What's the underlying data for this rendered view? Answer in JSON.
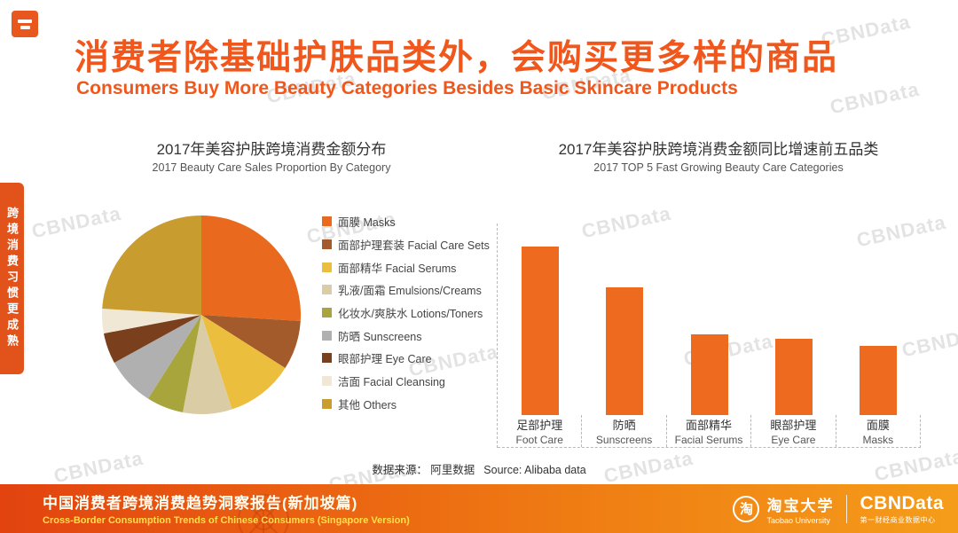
{
  "watermark": {
    "text": "CBNData"
  },
  "side_tab": {
    "text": "跨境消费习惯更成熟"
  },
  "header": {
    "title_zh": "消费者除基础护肤品类外，会购买更多样的商品",
    "title_en": "Consumers Buy More Beauty Categories Besides Basic Skincare Products"
  },
  "source": {
    "zh": "数据来源： 阿里数据",
    "en": "Source:  Alibaba data"
  },
  "footer": {
    "report_zh": "中国消费者跨境消费趋势洞察报告(新加坡篇)",
    "report_en": "Cross-Border Consumption Trends of Chinese Consumers  (Singapore Version)",
    "taobao_mark": "淘",
    "taobao_zh": "淘宝大学",
    "taobao_en": "Taobao University",
    "cbn_logo": "CBNData",
    "cbn_sub": "第一财经商业数据中心"
  },
  "chart_data": [
    {
      "type": "pie",
      "title": "2017年美容护肤跨境消费金额分布",
      "subtitle": "2017  Beauty Care Sales Proportion By Category",
      "legend_position": "right",
      "slices": [
        {
          "label": "面膜 Masks",
          "value": 26,
          "color": "#E96A1E"
        },
        {
          "label": "面部护理套装 Facial Care Sets",
          "value": 8,
          "color": "#A35B2B"
        },
        {
          "label": "面部精华 Facial Serums",
          "value": 11,
          "color": "#ECBE3E"
        },
        {
          "label": "乳液/面霜 Emulsions/Creams",
          "value": 8,
          "color": "#DACCA5"
        },
        {
          "label": "化妆水/爽肤水 Lotions/Toners",
          "value": 6,
          "color": "#A9A53D"
        },
        {
          "label": "防晒 Sunscreens",
          "value": 8,
          "color": "#B0B0B0"
        },
        {
          "label": "眼部护理 Eye Care",
          "value": 5,
          "color": "#7A3F1D"
        },
        {
          "label": "洁面 Facial Cleansing",
          "value": 4,
          "color": "#F0E8D5"
        },
        {
          "label": "其他 Others",
          "value": 24,
          "color": "#C89C2F"
        }
      ]
    },
    {
      "type": "bar",
      "title": "2017年美容护肤跨境消费金额同比增速前五品类",
      "subtitle": "2017 TOP 5 Fast Growing Beauty Care Categories",
      "bar_color": "#ED6A1E",
      "categories": [
        {
          "zh": "足部护理",
          "en": "Foot Care",
          "value": 100
        },
        {
          "zh": "防晒",
          "en": "Sunscreens",
          "value": 76
        },
        {
          "zh": "面部精华",
          "en": "Facial Serums",
          "value": 48
        },
        {
          "zh": "眼部护理",
          "en": "Eye Care",
          "value": 45
        },
        {
          "zh": "面膜",
          "en": "Masks",
          "value": 41
        }
      ]
    }
  ]
}
